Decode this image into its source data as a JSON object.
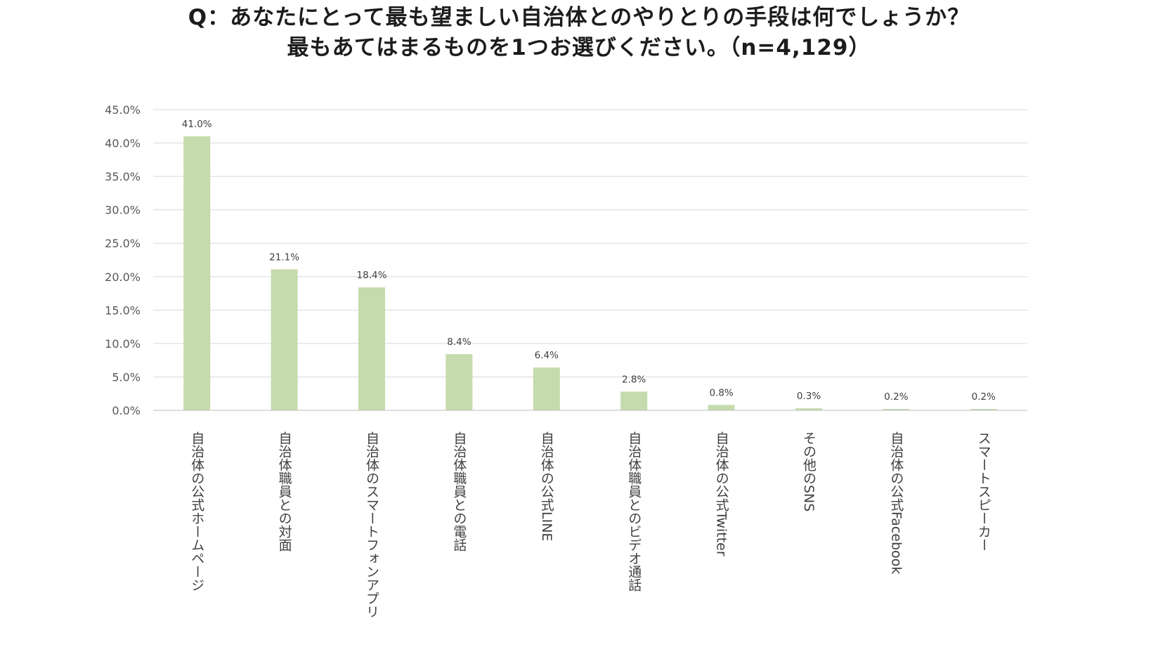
{
  "title": {
    "line1": "Q：あなたにとって最も望ましい自治体とのやりとりの手段は何でしょうか？",
    "line2": "最もあてはまるものを1つお選びください。（n=4,129）"
  },
  "colors": {
    "bar": "#c5dbad",
    "grid": "#d9d9d9",
    "axis": "#bfbfbf"
  },
  "chart_data": {
    "type": "bar",
    "title": "Q：あなたにとって最も望ましい自治体とのやりとりの手段は何でしょうか？最もあてはまるものを1つお選びください。（n=4,129）",
    "xlabel": "",
    "ylabel": "",
    "ylim": [
      0,
      45
    ],
    "y_ticks": [
      "0.0%",
      "5.0%",
      "10.0%",
      "15.0%",
      "20.0%",
      "25.0%",
      "30.0%",
      "35.0%",
      "40.0%",
      "45.0%"
    ],
    "grid": true,
    "legend": "none",
    "categories": [
      "自治体の公式ホームページ",
      "自治体職員との対面",
      "自治体のスマートフォンアプリ",
      "自治体職員との電話",
      "自治体の公式LINE",
      "自治体職員とのビデオ通話",
      "自治体の公式Twitter",
      "その他のSNS",
      "自治体の公式Facebook",
      "スマートスピーカー"
    ],
    "values": [
      41.0,
      21.1,
      18.4,
      8.4,
      6.4,
      2.8,
      0.8,
      0.3,
      0.2,
      0.2
    ],
    "data_labels": [
      "41.0%",
      "21.1%",
      "18.4%",
      "8.4%",
      "6.4%",
      "2.8%",
      "0.8%",
      "0.3%",
      "0.2%",
      "0.2%"
    ]
  }
}
